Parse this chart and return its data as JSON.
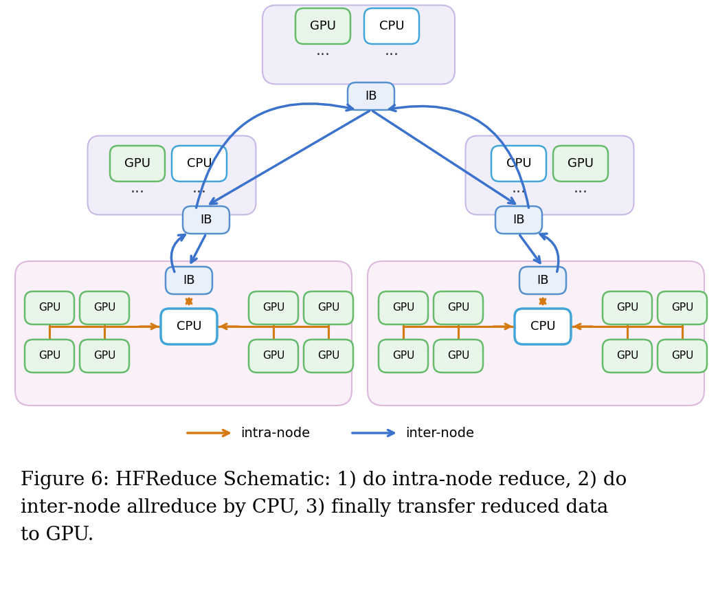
{
  "bg_color": "#ffffff",
  "gpu_box_color": "#e8f5e9",
  "gpu_border_color": "#66bb6a",
  "cpu_box_color": "#ffffff",
  "cpu_border_color": "#42a5d8",
  "ib_box_color": "#e8f0fb",
  "ib_border_color": "#5590cc",
  "top_node_bg": "#f0eef8",
  "top_node_border": "#c8b8e8",
  "mid_node_bg": "#f5eef8",
  "mid_node_border": "#d8b8e8",
  "bot_node_bg": "#faf0f8",
  "bot_node_border": "#ddb8dd",
  "inter_color": "#3a72cc",
  "intra_color": "#d47a10",
  "legend_intra": "intra-node",
  "legend_inter": "inter-node",
  "caption_line1": "Figure 6: HFReduce Schematic: 1) do intra-node reduce, 2) do",
  "caption_line2": "inter-node allreduce by CPU, 3) finally transfer reduced data",
  "caption_line3": "to GPU."
}
